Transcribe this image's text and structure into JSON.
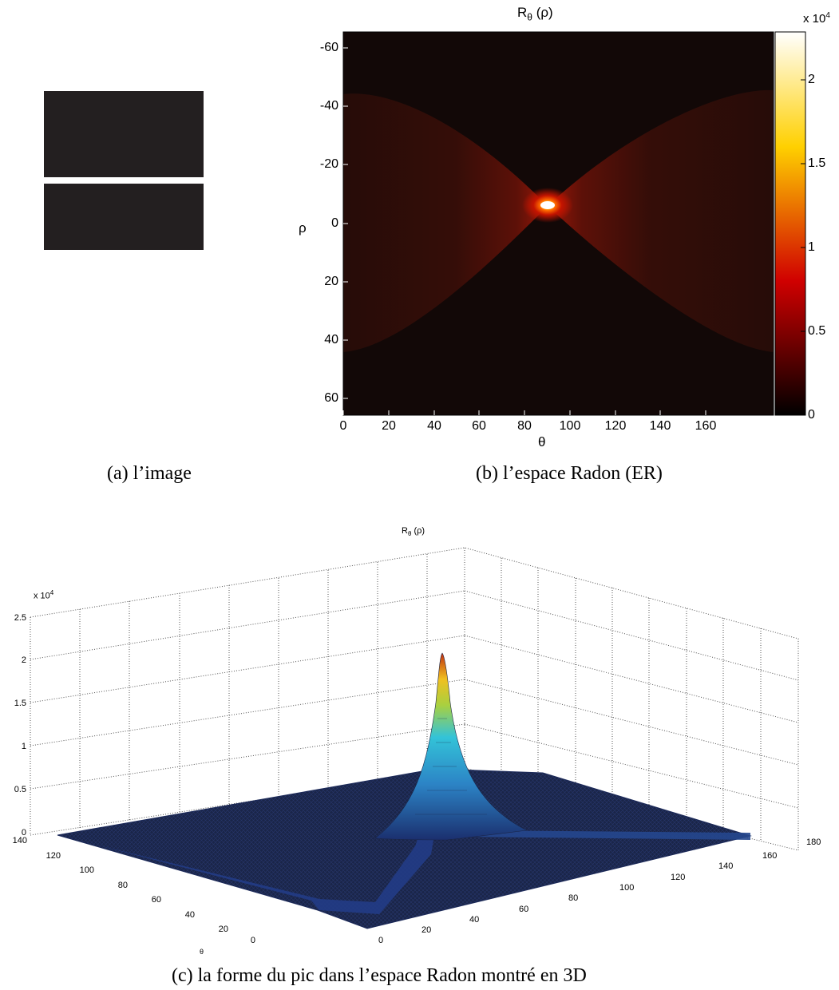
{
  "captions": {
    "a": "(a) l’image",
    "b": "(b) l’espace Radon (ER)",
    "c": "(c) la forme du pic dans l’espace Radon montré en 3D"
  },
  "panel_b": {
    "title_main": "R",
    "title_sub": "θ",
    "title_rest": " (ρ)",
    "xlabel": "θ",
    "ylabel": "ρ",
    "colorbar_multiplier": "x 10",
    "colorbar_exponent": "4",
    "colorbar_ticks": [
      "0",
      "0.5",
      "1",
      "1.5",
      "2"
    ]
  },
  "panel_c": {
    "title_main": "R",
    "title_sub": "θ",
    "title_rest": " (ρ)",
    "z_multiplier": "x 10",
    "z_exponent": "4",
    "xlabel": "θ"
  },
  "chart_data": [
    {
      "type": "heatmap",
      "title": "Rθ (ρ)",
      "xlabel": "θ",
      "ylabel": "ρ",
      "x_ticks": [
        0,
        20,
        40,
        60,
        80,
        100,
        120,
        140,
        160
      ],
      "y_ticks": [
        -60,
        -40,
        -20,
        0,
        20,
        40,
        60
      ],
      "xlim": [
        0,
        179
      ],
      "ylim": [
        -65,
        65
      ],
      "colormap": "hot",
      "color_range": [
        0,
        23000
      ],
      "colorbar_ticks": [
        0,
        0.5,
        1,
        1.5,
        2
      ],
      "colorbar_multiplier": "x 10^4",
      "peak": {
        "theta": 90,
        "rho": -7,
        "value": 23000
      }
    },
    {
      "type": "surface",
      "title": "Rθ (ρ)",
      "xlabel": "θ",
      "x_ticks": [
        0,
        20,
        40,
        60,
        80,
        100,
        120,
        140,
        160,
        180
      ],
      "y_ticks": [
        0,
        20,
        40,
        60,
        80,
        100,
        120,
        140
      ],
      "z_ticks": [
        0,
        0.5,
        1,
        1.5,
        2,
        2.5
      ],
      "z_multiplier": "x 10^4",
      "zlim": [
        0,
        2.5
      ],
      "peak": {
        "theta": 90,
        "rho": 58,
        "value": 2.05
      }
    }
  ]
}
